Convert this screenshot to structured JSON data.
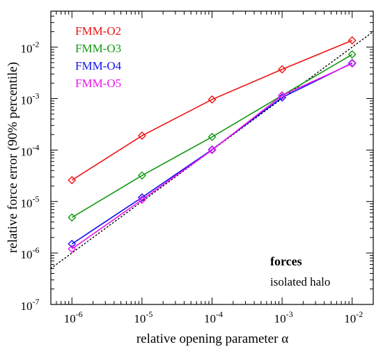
{
  "chart_data": {
    "type": "line",
    "xlabel": "relative opening parameter α",
    "ylabel": "relative force error (90% percentile)",
    "xscale": "log",
    "yscale": "log",
    "xlim": [
      5e-07,
      0.02
    ],
    "ylim": [
      1e-07,
      0.05
    ],
    "x_ticks": [
      {
        "value": 1e-06,
        "base": "10",
        "exp": "-6"
      },
      {
        "value": 1e-05,
        "base": "10",
        "exp": "-5"
      },
      {
        "value": 0.0001,
        "base": "10",
        "exp": "-4"
      },
      {
        "value": 0.001,
        "base": "10",
        "exp": "-3"
      },
      {
        "value": 0.01,
        "base": "10",
        "exp": "-2"
      }
    ],
    "y_ticks": [
      {
        "value": 1e-07,
        "base": "10",
        "exp": "-7"
      },
      {
        "value": 1e-06,
        "base": "10",
        "exp": "-6"
      },
      {
        "value": 1e-05,
        "base": "10",
        "exp": "-5"
      },
      {
        "value": 0.0001,
        "base": "10",
        "exp": "-4"
      },
      {
        "value": 0.001,
        "base": "10",
        "exp": "-3"
      },
      {
        "value": 0.01,
        "base": "10",
        "exp": "-2"
      }
    ],
    "x": [
      1e-06,
      1e-05,
      0.0001,
      0.001,
      0.01
    ],
    "series": [
      {
        "name": "FMM-O2",
        "color": "#ee1111",
        "values": [
          2.6e-05,
          0.00019,
          0.00096,
          0.0037,
          0.0135
        ]
      },
      {
        "name": "FMM-O3",
        "color": "#119911",
        "values": [
          4.9e-06,
          3.2e-05,
          0.00018,
          0.00115,
          0.0072
        ]
      },
      {
        "name": "FMM-O4",
        "color": "#1111ee",
        "values": [
          1.5e-06,
          1.2e-05,
          0.000102,
          0.00105,
          0.0049
        ]
      },
      {
        "name": "FMM-O5",
        "color": "#ee11ee",
        "values": [
          1.2e-06,
          1.08e-05,
          0.0001,
          0.00115,
          0.0048
        ]
      }
    ],
    "reference_line": {
      "style": "dotted",
      "slope": 1,
      "intercept": 1,
      "color": "#000000"
    },
    "legend_placement": "top-left",
    "annotations": [
      {
        "text": "forces",
        "bold": true
      },
      {
        "text": "isolated halo",
        "bold": false
      }
    ]
  }
}
